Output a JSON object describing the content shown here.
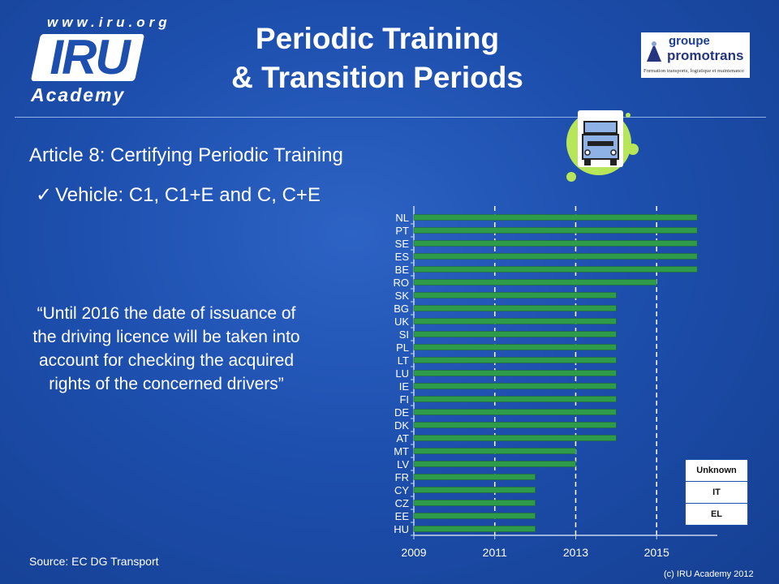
{
  "header": {
    "logo_url": "www.iru.org",
    "logo_text": "IRU",
    "logo_sub": "Academy",
    "title_line1": "Periodic Training",
    "title_line2": "& Transition Periods",
    "partner_line1": "groupe",
    "partner_line2": "promotrans",
    "partner_line3": "Formation transports, logistique et maintenance"
  },
  "content": {
    "subtitle": "Article 8: Certifying Periodic Training",
    "bullet": "Vehicle: C1, C1+E and C, C+E",
    "quote": "“Until 2016 the date of issuance of the driving licence will be taken into account for checking the acquired rights of the concerned drivers”",
    "source": "Source: EC DG Transport",
    "copyright": "(c) IRU Academy 2012"
  },
  "legend": {
    "items": [
      "Unknown",
      "IT",
      "EL"
    ]
  },
  "colors": {
    "background": "#1d4fae",
    "bar": "#2e9a4a",
    "gridline": "#ffffff"
  },
  "chart_data": {
    "type": "bar",
    "orientation": "horizontal",
    "categories": [
      "NL",
      "PT",
      "SE",
      "ES",
      "BE",
      "RO",
      "SK",
      "BG",
      "UK",
      "SI",
      "PL",
      "LT",
      "LU",
      "IE",
      "FI",
      "DE",
      "DK",
      "AT",
      "MT",
      "LV",
      "FR",
      "CY",
      "CZ",
      "EE",
      "HU"
    ],
    "values": [
      2016,
      2016,
      2016,
      2016,
      2016,
      2015,
      2014,
      2014,
      2014,
      2014,
      2014,
      2014,
      2014,
      2014,
      2014,
      2014,
      2014,
      2014,
      2013,
      2013,
      2012,
      2012,
      2012,
      2012,
      2012
    ],
    "xlim": [
      2009,
      2016.5
    ],
    "xticks": [
      2009,
      2011,
      2013,
      2015
    ],
    "xlabel": "",
    "ylabel": "",
    "grid": "vertical dashed"
  }
}
